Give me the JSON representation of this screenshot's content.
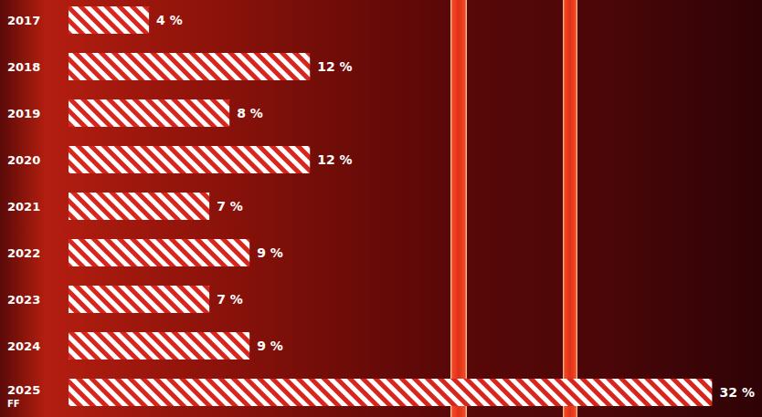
{
  "chart_data": {
    "type": "bar",
    "orientation": "horizontal",
    "categories": [
      "2017",
      "2018",
      "2019",
      "2020",
      "2021",
      "2022",
      "2023",
      "2024",
      "2025 FF"
    ],
    "values": [
      4,
      12,
      8,
      12,
      7,
      9,
      7,
      9,
      32
    ],
    "value_labels": [
      "4 %",
      "12 %",
      "8 %",
      "12 %",
      "7 %",
      "9 %",
      "7 %",
      "9 %",
      "32 %"
    ],
    "xlim": [
      0,
      32
    ],
    "color": "#d7261e",
    "data_labels": true,
    "tick_labels": "y",
    "grid": false
  }
}
